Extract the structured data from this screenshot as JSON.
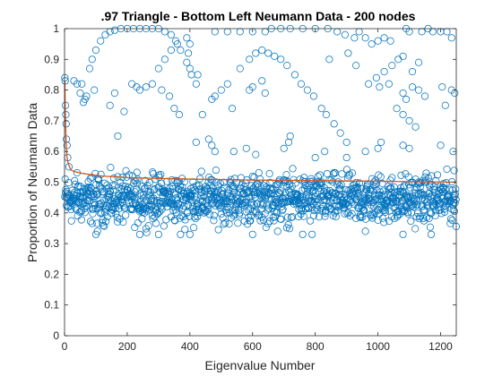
{
  "chart_data": {
    "type": "scatter",
    "title": ".97 Triangle - Bottom Left Neumann Data - 200 nodes",
    "xlabel": "Eigenvalue Number",
    "ylabel": "Proportion of Neumann Data",
    "xlim": [
      0,
      1250
    ],
    "ylim": [
      0,
      1
    ],
    "xticks": [
      0,
      200,
      400,
      600,
      800,
      1000,
      1200
    ],
    "yticks": [
      0,
      0.1,
      0.2,
      0.3,
      0.4,
      0.5,
      0.6,
      0.7,
      0.8,
      0.9,
      1
    ],
    "grid": false,
    "legend": "none",
    "colors": {
      "markers": "#0072BD",
      "line": "#D95319",
      "axes": "#262626"
    },
    "n_points": 1250,
    "series": [
      {
        "type": "scatter",
        "marker": "circle-open",
        "dense_band": {
          "min": 0.33,
          "max": 0.56,
          "center": 0.46
        },
        "points": [
          [
            1,
            0.84
          ],
          [
            2,
            0.83
          ],
          [
            3,
            0.75
          ],
          [
            4,
            0.72
          ],
          [
            5,
            0.69
          ],
          [
            6,
            0.64
          ],
          [
            8,
            0.62
          ],
          [
            10,
            0.58
          ],
          [
            14,
            0.55
          ],
          [
            30,
            0.83
          ],
          [
            40,
            0.82
          ],
          [
            55,
            0.82
          ],
          [
            50,
            0.79
          ],
          [
            60,
            0.76
          ],
          [
            65,
            0.77
          ],
          [
            70,
            0.78
          ],
          [
            95,
            0.8
          ],
          [
            145,
            0.75
          ],
          [
            160,
            0.79
          ],
          [
            215,
            0.82
          ],
          [
            230,
            0.81
          ],
          [
            240,
            0.8
          ],
          [
            190,
            0.73
          ],
          [
            170,
            0.65
          ],
          [
            80,
            0.87
          ],
          [
            88,
            0.9
          ],
          [
            100,
            0.93
          ],
          [
            115,
            0.96
          ],
          [
            130,
            0.98
          ],
          [
            145,
            0.99
          ],
          [
            160,
            0.995
          ],
          [
            180,
            1.0
          ],
          [
            200,
            1.0
          ],
          [
            220,
            1.0
          ],
          [
            240,
            1.0
          ],
          [
            260,
            1.0
          ],
          [
            280,
            1.0
          ],
          [
            300,
            1.0
          ],
          [
            320,
            0.99
          ],
          [
            340,
            0.98
          ],
          [
            355,
            0.96
          ],
          [
            370,
            0.93
          ],
          [
            390,
            0.89
          ],
          [
            400,
            0.87
          ],
          [
            405,
            0.85
          ],
          [
            395,
            0.92
          ],
          [
            400,
            0.95
          ],
          [
            300,
            0.87
          ],
          [
            320,
            0.9
          ],
          [
            340,
            0.93
          ],
          [
            360,
            0.95
          ],
          [
            390,
            0.97
          ],
          [
            480,
            0.99
          ],
          [
            520,
            0.99
          ],
          [
            560,
            0.99
          ],
          [
            600,
            0.99
          ],
          [
            640,
            0.99
          ],
          [
            660,
            1.0
          ],
          [
            690,
            1.0
          ],
          [
            720,
            1.0
          ],
          [
            760,
            1.0
          ],
          [
            800,
            1.0
          ],
          [
            840,
            1.0
          ],
          [
            870,
            0.99
          ],
          [
            895,
            0.98
          ],
          [
            925,
            0.97
          ],
          [
            940,
            0.99
          ],
          [
            960,
            0.97
          ],
          [
            980,
            0.95
          ],
          [
            1000,
            0.96
          ],
          [
            1020,
            0.97
          ],
          [
            1040,
            0.96
          ],
          [
            1090,
            1.0
          ],
          [
            1100,
            0.99
          ],
          [
            1140,
            0.99
          ],
          [
            1160,
            1.0
          ],
          [
            1175,
            0.99
          ],
          [
            1200,
            0.99
          ],
          [
            1220,
            0.99
          ],
          [
            1235,
            0.97
          ],
          [
            440,
            0.72
          ],
          [
            470,
            0.77
          ],
          [
            500,
            0.8
          ],
          [
            520,
            0.82
          ],
          [
            560,
            0.87
          ],
          [
            590,
            0.9
          ],
          [
            610,
            0.92
          ],
          [
            630,
            0.93
          ],
          [
            650,
            0.92
          ],
          [
            670,
            0.91
          ],
          [
            690,
            0.9
          ],
          [
            710,
            0.88
          ],
          [
            735,
            0.85
          ],
          [
            755,
            0.82
          ],
          [
            775,
            0.8
          ],
          [
            795,
            0.78
          ],
          [
            820,
            0.74
          ],
          [
            835,
            0.72
          ],
          [
            860,
            0.69
          ],
          [
            880,
            0.66
          ],
          [
            900,
            0.63
          ],
          [
            420,
            0.82
          ],
          [
            425,
            0.85
          ],
          [
            480,
            0.78
          ],
          [
            535,
            0.74
          ],
          [
            590,
            0.8
          ],
          [
            600,
            0.81
          ],
          [
            630,
            0.83
          ],
          [
            640,
            0.79
          ],
          [
            845,
            0.9
          ],
          [
            905,
            0.92
          ],
          [
            930,
            0.88
          ],
          [
            1005,
            0.81
          ],
          [
            1035,
            0.82
          ],
          [
            1080,
            0.79
          ],
          [
            1090,
            0.77
          ],
          [
            1110,
            0.81
          ],
          [
            1130,
            0.8
          ],
          [
            1150,
            0.78
          ],
          [
            1205,
            0.81
          ],
          [
            1215,
            0.75
          ],
          [
            1235,
            0.8
          ],
          [
            1245,
            0.79
          ],
          [
            1060,
            0.74
          ],
          [
            1080,
            0.72
          ],
          [
            1100,
            0.7
          ],
          [
            1120,
            0.68
          ],
          [
            1130,
            0.89
          ],
          [
            970,
            0.82
          ],
          [
            995,
            0.84
          ],
          [
            1020,
            0.86
          ],
          [
            1045,
            0.88
          ],
          [
            1065,
            0.9
          ],
          [
            1080,
            0.91
          ],
          [
            1110,
            0.86
          ],
          [
            260,
            0.81
          ],
          [
            280,
            0.82
          ],
          [
            310,
            0.8
          ],
          [
            335,
            0.78
          ],
          [
            350,
            0.74
          ],
          [
            366,
            0.72
          ],
          [
            420,
            0.63
          ],
          [
            460,
            0.64
          ],
          [
            470,
            0.62
          ],
          [
            480,
            0.6
          ],
          [
            540,
            0.6
          ],
          [
            580,
            0.61
          ],
          [
            610,
            0.59
          ],
          [
            700,
            0.61
          ],
          [
            715,
            0.63
          ],
          [
            720,
            0.65
          ],
          [
            800,
            0.58
          ],
          [
            830,
            0.6
          ],
          [
            900,
            0.58
          ],
          [
            960,
            0.6
          ],
          [
            1000,
            0.61
          ],
          [
            1010,
            0.63
          ],
          [
            1080,
            0.62
          ],
          [
            1100,
            0.61
          ],
          [
            1200,
            0.62
          ],
          [
            1240,
            0.6
          ],
          [
            100,
            0.33
          ],
          [
            105,
            0.34
          ],
          [
            240,
            0.33
          ],
          [
            300,
            0.33
          ],
          [
            370,
            0.33
          ],
          [
            400,
            0.33
          ],
          [
            600,
            0.33
          ],
          [
            680,
            0.34
          ],
          [
            760,
            0.33
          ],
          [
            790,
            0.33
          ],
          [
            960,
            0.34
          ],
          [
            1080,
            0.33
          ],
          [
            1170,
            0.33
          ]
        ]
      },
      {
        "type": "line",
        "start_value": 0.83,
        "asymptote": 0.5,
        "points": [
          [
            1,
            0.83
          ],
          [
            2,
            0.75
          ],
          [
            3,
            0.7
          ],
          [
            5,
            0.63
          ],
          [
            8,
            0.58
          ],
          [
            12,
            0.56
          ],
          [
            20,
            0.54
          ],
          [
            30,
            0.535
          ],
          [
            50,
            0.53
          ],
          [
            80,
            0.525
          ],
          [
            120,
            0.52
          ],
          [
            200,
            0.515
          ],
          [
            300,
            0.512
          ],
          [
            400,
            0.51
          ],
          [
            600,
            0.507
          ],
          [
            800,
            0.505
          ],
          [
            1000,
            0.503
          ],
          [
            1250,
            0.5
          ]
        ]
      }
    ]
  }
}
